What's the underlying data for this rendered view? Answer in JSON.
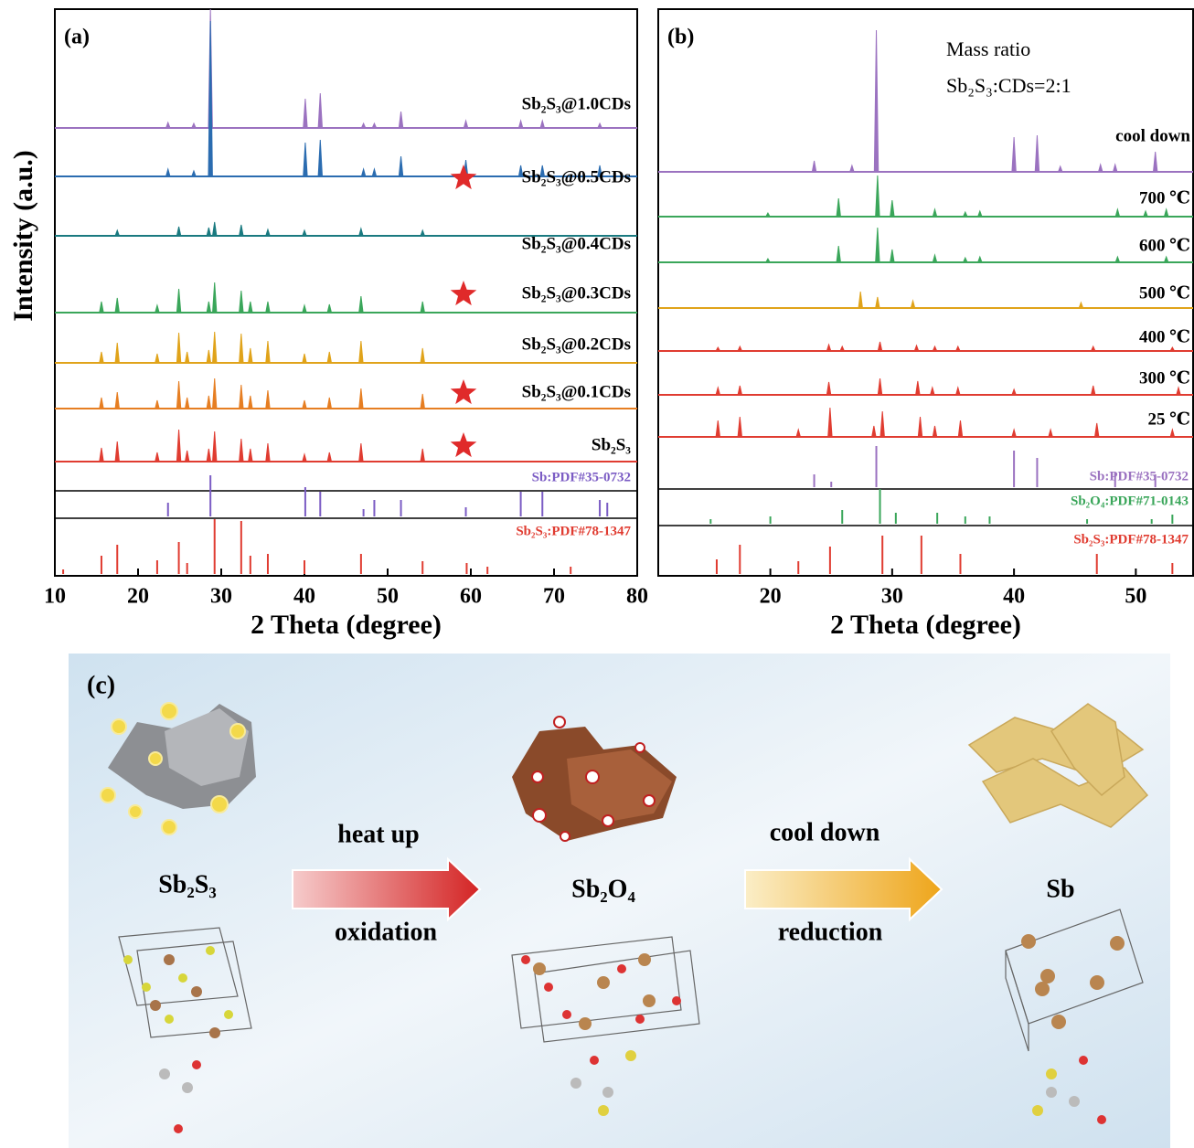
{
  "chart_data": [
    {
      "type": "spectra",
      "label": "(a)",
      "xlabel": "2 Theta (degree)",
      "ylabel": "Intensity (a.u.)",
      "xlim": [
        10,
        80
      ],
      "xticks": [
        10,
        20,
        30,
        40,
        50,
        60,
        70,
        80
      ],
      "series": [
        {
          "name": "Sb₂S₃@1.0CDs",
          "color": "#9b72c0",
          "starred": false,
          "x": [
            23.6,
            26.7,
            28.7,
            40.1,
            41.9,
            47.1,
            48.4,
            51.6,
            59.4,
            66,
            68.6,
            75.5
          ],
          "values": [
            6,
            5,
            130,
            32,
            38,
            5,
            5,
            18,
            8,
            8,
            8,
            5
          ]
        },
        {
          "name": "Sb₂S₃@0.5CDs",
          "color": "#2b6cb0",
          "starred": true,
          "x": [
            23.6,
            26.7,
            28.7,
            40.1,
            41.9,
            47.1,
            48.4,
            51.6,
            59.4,
            66,
            68.6,
            75.5
          ],
          "values": [
            8,
            6,
            170,
            37,
            40,
            8,
            8,
            22,
            18,
            12,
            12,
            12
          ]
        },
        {
          "name": "Sb₂S₃@0.4CDs",
          "color": "#1a7a80",
          "starred": false,
          "x": [
            17.5,
            24.9,
            28.5,
            29.2,
            32.4,
            35.6,
            40,
            46.8,
            54.2
          ],
          "values": [
            6,
            10,
            9,
            15,
            12,
            7,
            6,
            8,
            6
          ]
        },
        {
          "name": "Sb₂S₃@0.3CDs",
          "color": "#3aa65a",
          "starred": true,
          "x": [
            15.6,
            17.5,
            22.3,
            24.9,
            28.5,
            29.2,
            32.4,
            33.5,
            35.6,
            40,
            43,
            46.8,
            54.2
          ],
          "values": [
            12,
            16,
            8,
            26,
            12,
            33,
            24,
            12,
            12,
            8,
            9,
            18,
            12
          ]
        },
        {
          "name": "Sb₂S₃@0.2CDs",
          "color": "#e0a31a",
          "starred": false,
          "x": [
            15.6,
            17.5,
            22.3,
            24.9,
            25.9,
            28.5,
            29.2,
            32.4,
            33.5,
            35.6,
            40,
            43,
            46.8,
            54.2
          ],
          "values": [
            12,
            22,
            10,
            33,
            12,
            14,
            34,
            32,
            16,
            24,
            10,
            12,
            24,
            16
          ]
        },
        {
          "name": "Sb₂S₃@0.1CDs",
          "color": "#e67e22",
          "starred": true,
          "x": [
            15.6,
            17.5,
            22.3,
            24.9,
            25.9,
            28.5,
            29.2,
            32.4,
            33.5,
            35.6,
            40,
            43,
            46.8,
            54.2
          ],
          "values": [
            12,
            18,
            9,
            30,
            12,
            14,
            33,
            26,
            14,
            20,
            9,
            12,
            22,
            16
          ]
        },
        {
          "name": "Sb₂S₃",
          "color": "#e03c31",
          "starred": true,
          "x": [
            15.6,
            17.5,
            22.3,
            24.9,
            25.9,
            28.5,
            29.2,
            32.4,
            33.5,
            35.6,
            40,
            43,
            46.8,
            54.2
          ],
          "values": [
            15,
            22,
            10,
            35,
            12,
            14,
            33,
            25,
            14,
            20,
            8,
            10,
            20,
            14
          ]
        }
      ],
      "references": [
        {
          "name": "Sb:PDF#35-0732",
          "color": "#7b5cc4",
          "x": [
            23.6,
            28.7,
            40.1,
            41.9,
            47.1,
            48.4,
            51.6,
            59.4,
            66,
            68.6,
            75.5,
            76.4
          ],
          "values": [
            15,
            45,
            32,
            27,
            8,
            18,
            18,
            10,
            27,
            27,
            18,
            15
          ]
        },
        {
          "name": "Sb₂S₃:PDF#78-1347",
          "color": "#e03c31",
          "x": [
            11,
            15.6,
            17.5,
            22.3,
            24.9,
            25.9,
            29.2,
            32.4,
            33.5,
            35.6,
            40,
            46.8,
            54.2,
            59.5,
            62,
            72
          ],
          "values": [
            5,
            20,
            32,
            15,
            35,
            12,
            60,
            58,
            20,
            22,
            15,
            22,
            14,
            12,
            8,
            8
          ]
        }
      ]
    },
    {
      "type": "spectra",
      "label": "(b)",
      "xlabel": "2 Theta (degree)",
      "annotations": [
        "Mass ratio",
        "Sb₂S₃:CDs=2:1"
      ],
      "xlim": [
        10.8,
        54.7
      ],
      "xticks": [
        20,
        30,
        40,
        50
      ],
      "series": [
        {
          "name": "cool down",
          "color": "#9b72c0",
          "starred": false,
          "x": [
            23.6,
            26.7,
            28.7,
            40,
            41.9,
            43.8,
            47.1,
            48.3,
            51.6
          ],
          "values": [
            12,
            7,
            155,
            38,
            40,
            6,
            8,
            8,
            22
          ]
        },
        {
          "name": "700 ℃",
          "color": "#3aa65a",
          "starred": false,
          "x": [
            19.8,
            25.6,
            28.8,
            30,
            33.5,
            36,
            37.2,
            48.5,
            50.8,
            52.5
          ],
          "values": [
            4,
            20,
            45,
            18,
            8,
            5,
            6,
            8,
            6,
            8
          ]
        },
        {
          "name": "600 ℃",
          "color": "#3aa65a",
          "starred": false,
          "x": [
            19.8,
            25.6,
            28.8,
            30,
            33.5,
            36,
            37.2,
            48.5,
            52.5
          ],
          "values": [
            4,
            18,
            38,
            14,
            8,
            5,
            6,
            6,
            6
          ]
        },
        {
          "name": "500 ℃",
          "color": "#e0a31a",
          "starred": false,
          "x": [
            27.4,
            28.8,
            31.7,
            45.5
          ],
          "values": [
            18,
            12,
            8,
            6
          ]
        },
        {
          "name": "400 ℃",
          "color": "#e03c31",
          "starred": false,
          "x": [
            15.7,
            17.5,
            24.8,
            25.9,
            29,
            32,
            33.5,
            35.4,
            46.5,
            53
          ],
          "values": [
            4,
            5,
            7,
            5,
            10,
            6,
            5,
            5,
            5,
            4
          ]
        },
        {
          "name": "300 ℃",
          "color": "#e03c31",
          "starred": false,
          "x": [
            15.7,
            17.5,
            24.8,
            29,
            32.1,
            33.3,
            35.4,
            40,
            46.5,
            53.5
          ],
          "values": [
            8,
            10,
            14,
            18,
            15,
            8,
            8,
            6,
            10,
            8
          ]
        },
        {
          "name": "25 ℃",
          "color": "#e03c31",
          "starred": false,
          "x": [
            15.7,
            17.5,
            22.3,
            24.9,
            28.5,
            29.2,
            32.3,
            33.5,
            35.6,
            40,
            43,
            46.8,
            53
          ],
          "values": [
            18,
            22,
            8,
            32,
            12,
            28,
            22,
            12,
            18,
            8,
            8,
            15,
            8
          ]
        }
      ],
      "references": [
        {
          "name": "Sb:PDF#35-0732",
          "color": "#9b72c0",
          "x": [
            23.6,
            25,
            28.7,
            40,
            41.9,
            48.3,
            51.6
          ],
          "values": [
            14,
            6,
            45,
            40,
            32,
            16,
            14
          ]
        },
        {
          "name": "Sb₂O₄:PDF#71-0143",
          "color": "#3aa65a",
          "x": [
            15.1,
            20,
            25.9,
            29,
            30.3,
            33.7,
            36,
            38,
            46,
            51.3,
            53
          ],
          "values": [
            5,
            8,
            15,
            38,
            12,
            12,
            8,
            8,
            5,
            5,
            10
          ]
        },
        {
          "name": "Sb₂S₃:PDF#78-1347",
          "color": "#e03c31",
          "x": [
            15.6,
            17.5,
            22.3,
            24.9,
            29.2,
            32.4,
            35.6,
            46.8,
            53
          ],
          "values": [
            16,
            32,
            14,
            30,
            42,
            42,
            22,
            22,
            12
          ]
        }
      ]
    }
  ],
  "diagram": {
    "label": "(c)",
    "stages": [
      "Sb₂S₃",
      "Sb₂O₄",
      "Sb"
    ],
    "arrows": [
      {
        "top": "heat up",
        "bottom": "oxidation"
      },
      {
        "top": "cool down",
        "bottom": "reduction"
      }
    ]
  }
}
